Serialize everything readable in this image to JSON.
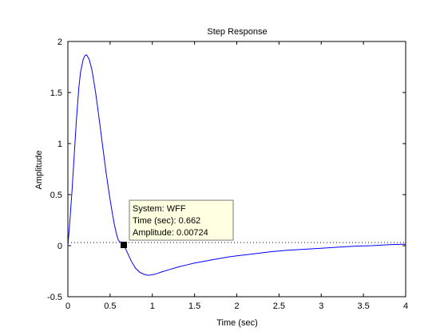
{
  "chart_data": {
    "type": "line",
    "title": "Step Response",
    "xlabel": "Time (sec)",
    "ylabel": "Amplitude",
    "xlim": [
      0,
      4
    ],
    "ylim": [
      -0.5,
      2
    ],
    "xticks": [
      0,
      0.5,
      1,
      1.5,
      2,
      2.5,
      3,
      3.5,
      4
    ],
    "xtick_labels": [
      "0",
      "0.5",
      "1",
      "1.5",
      "2",
      "2.5",
      "3",
      "3.5",
      "4"
    ],
    "yticks": [
      -0.5,
      0,
      0.5,
      1,
      1.5,
      2
    ],
    "ytick_labels": [
      "-0.5",
      "0",
      "0.5",
      "1",
      "1.5",
      "2"
    ],
    "grid": false,
    "series": [
      {
        "color": "#0000ff",
        "x": [
          0,
          0.02,
          0.05,
          0.08,
          0.1,
          0.13,
          0.15,
          0.18,
          0.2,
          0.22,
          0.25,
          0.28,
          0.3,
          0.33,
          0.35,
          0.38,
          0.4,
          0.43,
          0.45,
          0.48,
          0.5,
          0.53,
          0.55,
          0.58,
          0.6,
          0.63,
          0.662,
          0.7,
          0.75,
          0.8,
          0.85,
          0.9,
          0.95,
          1.0,
          1.05,
          1.1,
          1.2,
          1.3,
          1.4,
          1.5,
          1.6,
          1.7,
          1.8,
          1.9,
          2.0,
          2.2,
          2.4,
          2.6,
          2.8,
          3.0,
          3.2,
          3.4,
          3.6,
          3.8,
          4.0
        ],
        "y": [
          0,
          0.2,
          0.55,
          0.95,
          1.22,
          1.55,
          1.7,
          1.82,
          1.86,
          1.87,
          1.83,
          1.74,
          1.65,
          1.49,
          1.37,
          1.18,
          1.05,
          0.86,
          0.73,
          0.56,
          0.45,
          0.3,
          0.21,
          0.1,
          0.05,
          0.03,
          0.00724,
          -0.06,
          -0.15,
          -0.22,
          -0.26,
          -0.28,
          -0.29,
          -0.285,
          -0.275,
          -0.26,
          -0.235,
          -0.21,
          -0.19,
          -0.17,
          -0.155,
          -0.14,
          -0.125,
          -0.11,
          -0.1,
          -0.08,
          -0.06,
          -0.045,
          -0.035,
          -0.025,
          -0.015,
          -0.005,
          0.0,
          0.01,
          0.015
        ]
      }
    ],
    "reference_line": {
      "y": 0.03,
      "style": "dotted",
      "color": "#000000"
    },
    "datatip": {
      "x": 0.662,
      "y": 0.00724,
      "lines": [
        "System: WFF",
        "Time (sec): 0.662",
        "Amplitude: 0.00724"
      ],
      "background": "#ffffe1",
      "border": "#7a7a7a"
    }
  }
}
